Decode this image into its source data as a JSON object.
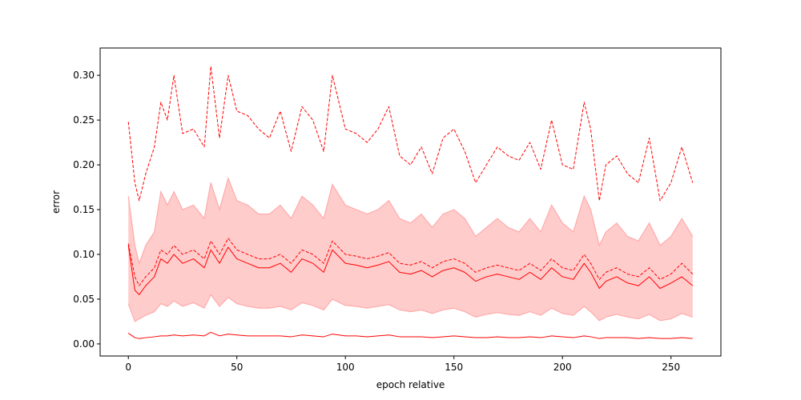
{
  "chart_data": {
    "type": "line",
    "title": "",
    "xlabel": "epoch relative",
    "ylabel": "error",
    "xlim": [
      -13,
      273
    ],
    "ylim": [
      -0.0135,
      0.3305
    ],
    "grid": false,
    "x_ticks": [
      0,
      50,
      100,
      150,
      200,
      250
    ],
    "x_tick_labels": [
      "0",
      "50",
      "100",
      "150",
      "200",
      "250"
    ],
    "y_ticks": [
      0.0,
      0.05,
      0.1,
      0.15,
      0.2,
      0.25,
      0.3
    ],
    "y_tick_labels": [
      "0.00",
      "0.05",
      "0.10",
      "0.15",
      "0.20",
      "0.25",
      "0.30"
    ],
    "colors": {
      "line": "#ff0000",
      "band_fill": "#ffcccc",
      "band_edge": "#ffaaaa"
    },
    "x": [
      0,
      3,
      5,
      8,
      12,
      15,
      18,
      21,
      25,
      30,
      35,
      38,
      42,
      46,
      50,
      55,
      60,
      65,
      70,
      75,
      80,
      85,
      90,
      94,
      100,
      105,
      110,
      115,
      120,
      125,
      130,
      135,
      140,
      145,
      150,
      155,
      160,
      165,
      170,
      175,
      180,
      185,
      190,
      195,
      200,
      205,
      210,
      213,
      217,
      220,
      225,
      230,
      235,
      240,
      245,
      250,
      255,
      260
    ],
    "series": [
      {
        "style": "dashed",
        "values": [
          0.248,
          0.18,
          0.16,
          0.19,
          0.22,
          0.27,
          0.25,
          0.3,
          0.235,
          0.24,
          0.22,
          0.31,
          0.23,
          0.3,
          0.26,
          0.255,
          0.24,
          0.23,
          0.26,
          0.215,
          0.265,
          0.25,
          0.215,
          0.3,
          0.24,
          0.235,
          0.225,
          0.24,
          0.265,
          0.21,
          0.2,
          0.22,
          0.19,
          0.23,
          0.24,
          0.215,
          0.18,
          0.2,
          0.22,
          0.21,
          0.205,
          0.225,
          0.195,
          0.25,
          0.2,
          0.195,
          0.27,
          0.24,
          0.16,
          0.2,
          0.21,
          0.19,
          0.18,
          0.23,
          0.16,
          0.18,
          0.22,
          0.18
        ]
      },
      {
        "style": "dashed",
        "values": [
          0.112,
          0.075,
          0.065,
          0.075,
          0.085,
          0.105,
          0.1,
          0.11,
          0.1,
          0.105,
          0.095,
          0.115,
          0.1,
          0.118,
          0.105,
          0.1,
          0.095,
          0.095,
          0.1,
          0.09,
          0.105,
          0.1,
          0.09,
          0.115,
          0.1,
          0.098,
          0.095,
          0.098,
          0.102,
          0.09,
          0.088,
          0.092,
          0.085,
          0.092,
          0.095,
          0.09,
          0.08,
          0.085,
          0.088,
          0.085,
          0.082,
          0.09,
          0.082,
          0.095,
          0.085,
          0.082,
          0.1,
          0.09,
          0.072,
          0.08,
          0.085,
          0.078,
          0.075,
          0.085,
          0.072,
          0.078,
          0.09,
          0.078
        ]
      },
      {
        "style": "solid",
        "values": [
          0.11,
          0.06,
          0.055,
          0.065,
          0.075,
          0.095,
          0.09,
          0.1,
          0.09,
          0.095,
          0.085,
          0.105,
          0.09,
          0.108,
          0.095,
          0.09,
          0.085,
          0.085,
          0.09,
          0.08,
          0.095,
          0.09,
          0.08,
          0.105,
          0.09,
          0.088,
          0.085,
          0.088,
          0.092,
          0.08,
          0.078,
          0.082,
          0.075,
          0.082,
          0.085,
          0.08,
          0.07,
          0.075,
          0.078,
          0.075,
          0.072,
          0.08,
          0.072,
          0.085,
          0.075,
          0.072,
          0.09,
          0.08,
          0.062,
          0.07,
          0.075,
          0.068,
          0.065,
          0.075,
          0.062,
          0.068,
          0.075,
          0.065
        ]
      },
      {
        "style": "solid",
        "values": [
          0.012,
          0.007,
          0.006,
          0.007,
          0.008,
          0.009,
          0.009,
          0.01,
          0.009,
          0.01,
          0.009,
          0.013,
          0.009,
          0.011,
          0.01,
          0.009,
          0.009,
          0.009,
          0.009,
          0.008,
          0.01,
          0.009,
          0.008,
          0.011,
          0.009,
          0.009,
          0.008,
          0.009,
          0.01,
          0.008,
          0.008,
          0.008,
          0.007,
          0.008,
          0.009,
          0.008,
          0.007,
          0.007,
          0.008,
          0.007,
          0.007,
          0.008,
          0.007,
          0.009,
          0.008,
          0.007,
          0.009,
          0.008,
          0.006,
          0.007,
          0.007,
          0.007,
          0.006,
          0.007,
          0.006,
          0.006,
          0.007,
          0.006
        ]
      }
    ],
    "band": {
      "upper": [
        0.165,
        0.11,
        0.09,
        0.11,
        0.125,
        0.17,
        0.155,
        0.17,
        0.15,
        0.155,
        0.14,
        0.18,
        0.15,
        0.185,
        0.16,
        0.155,
        0.145,
        0.145,
        0.155,
        0.14,
        0.165,
        0.155,
        0.14,
        0.178,
        0.155,
        0.15,
        0.145,
        0.15,
        0.16,
        0.14,
        0.135,
        0.145,
        0.13,
        0.145,
        0.15,
        0.14,
        0.12,
        0.13,
        0.14,
        0.13,
        0.125,
        0.14,
        0.125,
        0.155,
        0.135,
        0.125,
        0.165,
        0.15,
        0.11,
        0.125,
        0.135,
        0.12,
        0.115,
        0.135,
        0.11,
        0.12,
        0.14,
        0.12
      ],
      "lower": [
        0.045,
        0.025,
        0.028,
        0.032,
        0.036,
        0.045,
        0.042,
        0.048,
        0.042,
        0.046,
        0.04,
        0.055,
        0.042,
        0.052,
        0.045,
        0.042,
        0.04,
        0.04,
        0.042,
        0.038,
        0.046,
        0.043,
        0.038,
        0.05,
        0.043,
        0.042,
        0.04,
        0.042,
        0.044,
        0.038,
        0.036,
        0.038,
        0.034,
        0.038,
        0.04,
        0.036,
        0.03,
        0.033,
        0.035,
        0.033,
        0.032,
        0.036,
        0.032,
        0.04,
        0.034,
        0.032,
        0.042,
        0.036,
        0.026,
        0.03,
        0.033,
        0.03,
        0.028,
        0.033,
        0.026,
        0.028,
        0.034,
        0.03
      ]
    }
  }
}
